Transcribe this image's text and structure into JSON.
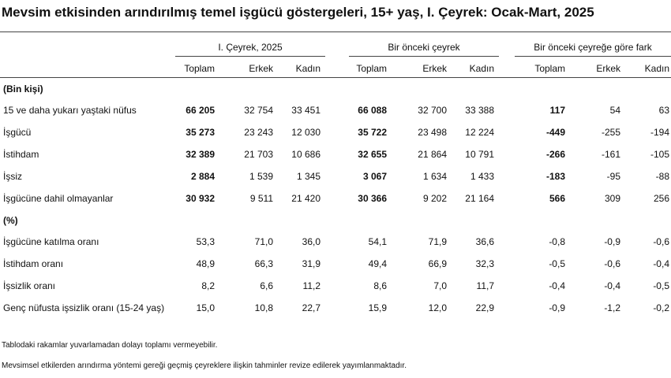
{
  "title": "Mevsim etkisinden arındırılmış temel işgücü göstergeleri, 15+ yaş, I. Çeyrek: Ocak-Mart, 2025",
  "table": {
    "groups": [
      "I. Çeyrek, 2025",
      "Bir önceki çeyrek",
      "Bir önceki çeyreğe göre fark"
    ],
    "columns": [
      "Toplam",
      "Erkek",
      "Kadın",
      "Toplam",
      "Erkek",
      "Kadın",
      "Toplam",
      "Erkek",
      "Kadın"
    ],
    "sections": [
      {
        "label": "(Bin kişi)",
        "rows": [
          {
            "label": "15 ve daha yukarı yaştaki nüfus",
            "cells": [
              "66 205",
              "32 754",
              "33 451",
              "66 088",
              "32 700",
              "33 388",
              "117",
              "54",
              "63"
            ]
          },
          {
            "label": "İşgücü",
            "cells": [
              "35 273",
              "23 243",
              "12 030",
              "35 722",
              "23 498",
              "12 224",
              "-449",
              "-255",
              "-194"
            ]
          },
          {
            "label": "İstihdam",
            "cells": [
              "32 389",
              "21 703",
              "10 686",
              "32 655",
              "21 864",
              "10 791",
              "-266",
              "-161",
              "-105"
            ]
          },
          {
            "label": "İşsiz",
            "cells": [
              "2 884",
              "1 539",
              "1 345",
              "3 067",
              "1 634",
              "1 433",
              "-183",
              "-95",
              "-88"
            ]
          },
          {
            "label": "İşgücüne dahil olmayanlar",
            "cells": [
              "30 932",
              "9 511",
              "21 420",
              "30 366",
              "9 202",
              "21 164",
              "566",
              "309",
              "256"
            ]
          }
        ]
      },
      {
        "label": "(%)",
        "rows": [
          {
            "label": "İşgücüne katılma oranı",
            "cells": [
              "53,3",
              "71,0",
              "36,0",
              "54,1",
              "71,9",
              "36,6",
              "-0,8",
              "-0,9",
              "-0,6"
            ]
          },
          {
            "label": "İstihdam oranı",
            "cells": [
              "48,9",
              "66,3",
              "31,9",
              "49,4",
              "66,9",
              "32,3",
              "-0,5",
              "-0,6",
              "-0,4"
            ]
          },
          {
            "label": "İşsizlik oranı",
            "cells": [
              "8,2",
              "6,6",
              "11,2",
              "8,6",
              "7,0",
              "11,7",
              "-0,4",
              "-0,4",
              "-0,5"
            ]
          },
          {
            "label": "Genç nüfusta işsizlik oranı (15-24 yaş)",
            "cells": [
              "15,0",
              "10,8",
              "22,7",
              "15,9",
              "12,0",
              "22,9",
              "-0,9",
              "-1,2",
              "-0,2"
            ]
          }
        ]
      }
    ]
  },
  "notes": [
    "Tablodaki rakamlar yuvarlamadan dolayı toplamı vermeyebilir.",
    "Mevsimsel etkilerden arındırma yöntemi gereği geçmiş çeyreklere ilişkin tahminler revize edilerek yayımlanmaktadır."
  ]
}
